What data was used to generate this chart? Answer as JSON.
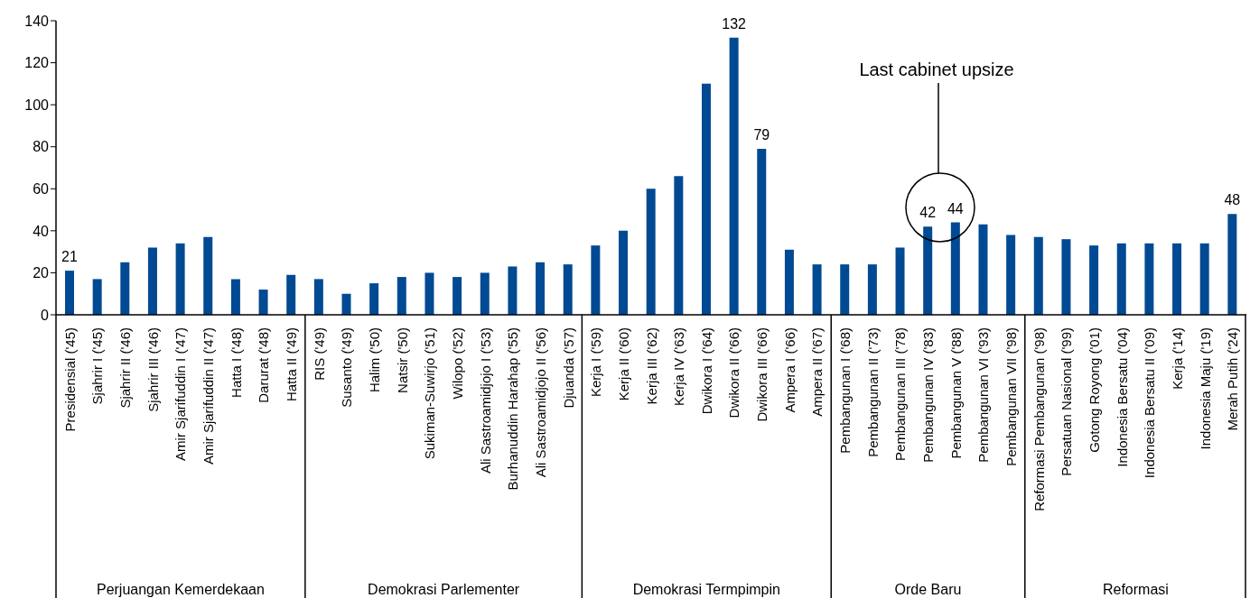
{
  "chart_data": {
    "type": "bar",
    "categories": [
      "Presidensial ('45)",
      "Sjahrir I ('45)",
      "Sjahrir II ('46)",
      "Sjahrir III ('46)",
      "Amir Sjarifuddin I ('47)",
      "Amir Sjarifuddin II ('47)",
      "Hatta I ('48)",
      "Darurat ('48)",
      "Hatta II ('49)",
      "RIS ('49)",
      "Susanto ('49)",
      "Halim ('50)",
      "Natsir ('50)",
      "Sukiman-Suwirjo ('51)",
      "Wilopo ('52)",
      "Ali Sastroamidjojo I ('53)",
      "Burhanuddin Harahap ('55)",
      "Ali Sastroamidjojo II ('56)",
      "Djuanda ('57)",
      "Kerja I ('59)",
      "Kerja II ('60)",
      "Kerja III ('62)",
      "Kerja IV ('63)",
      "Dwikora I ('64)",
      "Dwikora II ('66)",
      "Dwikora III ('66)",
      "Ampera I ('66)",
      "Ampera II ('67)",
      "Pembangunan I ('68)",
      "Pembangunan II ('73)",
      "Pembangunan III ('78)",
      "Pembangunan IV ('83)",
      "Pembangunan V ('88)",
      "Pembangunan VI ('93)",
      "Pembangunan VII ('98)",
      "Reformasi Pembangunan ('98)",
      "Persatuan Nasional ('99)",
      "Gotong Royong ('01)",
      "Indonesia Bersatu ('04)",
      "Indonesia Bersatu II ('09)",
      "Kerja ('14)",
      "Indonesia Maju ('19)",
      "Merah Putih ('24)"
    ],
    "values": [
      21,
      17,
      25,
      32,
      34,
      37,
      17,
      12,
      19,
      17,
      10,
      15,
      18,
      20,
      18,
      20,
      23,
      25,
      24,
      33,
      40,
      60,
      66,
      110,
      132,
      79,
      31,
      24,
      24,
      24,
      32,
      42,
      44,
      43,
      38,
      37,
      36,
      33,
      34,
      34,
      34,
      34,
      48
    ],
    "value_labels": [
      "21",
      null,
      null,
      null,
      null,
      null,
      null,
      null,
      null,
      null,
      null,
      null,
      null,
      null,
      null,
      null,
      null,
      null,
      null,
      null,
      null,
      null,
      null,
      null,
      "132",
      "79",
      null,
      null,
      null,
      null,
      null,
      "42",
      "44",
      null,
      null,
      null,
      null,
      null,
      null,
      null,
      null,
      null,
      "48"
    ],
    "color": "#004a93",
    "ylim": [
      0,
      140
    ],
    "yticks": [
      0,
      20,
      40,
      60,
      80,
      100,
      120,
      140
    ],
    "annotations": [
      "Perjuangan Kemerdekaan",
      "Demokrasi Parlementer",
      "Demokrasi Termpimpin",
      "Orde Baru",
      "Reformasi",
      "Last cabinet upsize"
    ]
  }
}
